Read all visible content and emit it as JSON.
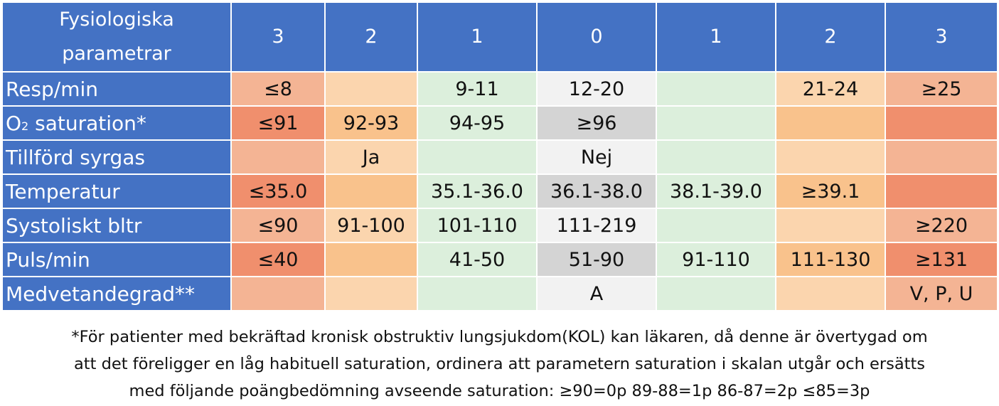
{
  "header": {
    "param_label_line1": "Fysiologiska",
    "param_label_line2": "parametrar",
    "scores": [
      "3",
      "2",
      "1",
      "0",
      "1",
      "2",
      "3"
    ]
  },
  "rows": [
    {
      "label": "Resp/min",
      "cells": [
        "≤8",
        "",
        "9-11",
        "12-20",
        "",
        "21-24",
        "≥25"
      ]
    },
    {
      "label_main": "O",
      "label_sub": "2",
      "label_rest": " saturation*",
      "cells": [
        "≤91",
        "92-93",
        "94-95",
        "≥96",
        "",
        "",
        ""
      ]
    },
    {
      "label": "Tillförd syrgas",
      "cells": [
        "",
        "Ja",
        "",
        "Nej",
        "",
        "",
        ""
      ]
    },
    {
      "label": "Temperatur",
      "cells": [
        "≤35.0",
        "",
        "35.1-36.0",
        "36.1-38.0",
        "38.1-39.0",
        "≥39.1",
        ""
      ]
    },
    {
      "label": "Systoliskt bltr",
      "cells": [
        "≤90",
        "91-100",
        "101-110",
        "111-219",
        "",
        "",
        "≥220"
      ]
    },
    {
      "label": "Puls/min",
      "cells": [
        "≤40",
        "",
        "41-50",
        "51-90",
        "91-110",
        "111-130",
        "≥131"
      ]
    },
    {
      "label": "Medvetandegrad**",
      "cells": [
        "",
        "",
        "",
        "A",
        "",
        "",
        "V, P, U"
      ]
    }
  ],
  "footnote": {
    "line1": "*För patienter med bekräftad kronisk obstruktiv lungsjukdom(KOL) kan läkaren, då denne är övertygad om",
    "line2": "att det föreligger en låg habituell saturation, ordinera att parametern saturation i skalan utgår och ersätts",
    "line3": "med följande poängbedömning avseende saturation: ≥90=0p  89-88=1p  86-87=2p  ≤85=3p"
  },
  "colors": {
    "header_blue": "#4472c4",
    "score3_light": "#f4b494",
    "score3_dark": "#f08f6d",
    "score2_light": "#fbd5ae",
    "score2_dark": "#f9c28c",
    "score1": "#dcefdc",
    "score0_light": "#f2f2f2",
    "score0_dark": "#d4d4d4"
  }
}
